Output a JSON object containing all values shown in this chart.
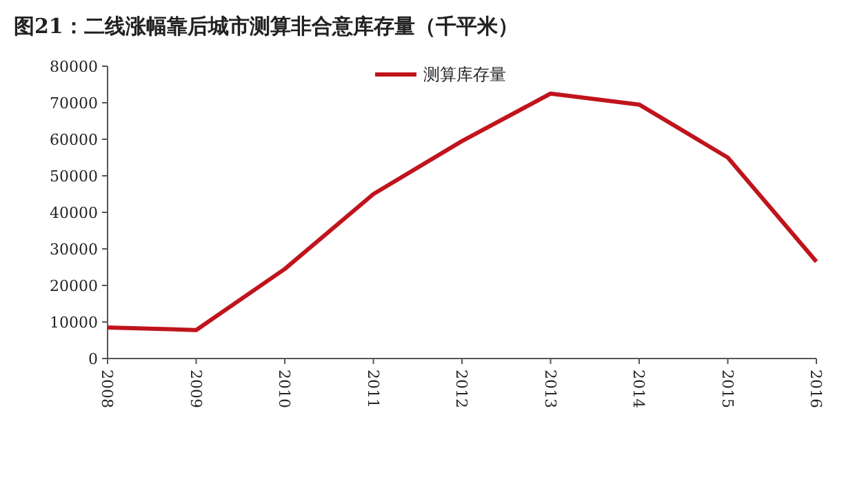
{
  "chart_data": {
    "type": "line",
    "title": "图21：二线涨幅靠后城市测算非合意库存量（千平米）",
    "categories": [
      "2008",
      "2009",
      "2010",
      "2011",
      "2012",
      "2013",
      "2014",
      "2015",
      "2016"
    ],
    "series": [
      {
        "name": "测算库存量",
        "color": "#c0141c",
        "values": [
          8500,
          7800,
          24500,
          45000,
          59500,
          72500,
          69500,
          55000,
          26500
        ]
      }
    ],
    "ylim": [
      0,
      80000
    ],
    "yticks": [
      0,
      10000,
      20000,
      30000,
      40000,
      50000,
      60000,
      70000,
      80000
    ],
    "grid": false,
    "legend": "top",
    "marker": "none",
    "line_style": "solid"
  }
}
